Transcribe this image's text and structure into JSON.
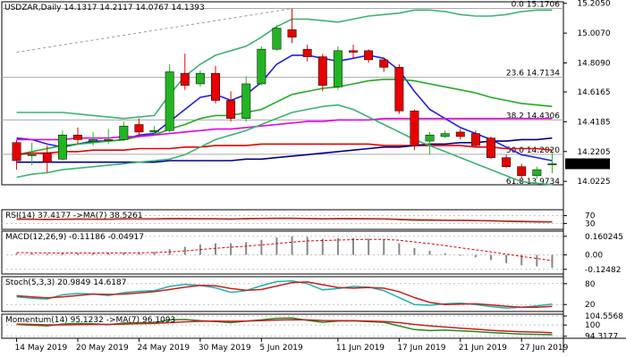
{
  "window": {
    "symbol_info": "USDZAR,Daily  14.1317 14.2117 14.0767 14.1393"
  },
  "chart_data": [
    {
      "type": "candlestick",
      "title": "USDZAR,Daily  14.1317 14.2117 14.0767 14.1393",
      "ylim": [
        14.0,
        15.215
      ],
      "price_ticks": [
        "15.2050",
        "15.0070",
        "14.8090",
        "14.6165",
        "14.4185",
        "14.2205",
        "14.0225"
      ],
      "price_tick_values": [
        15.205,
        15.007,
        14.809,
        14.6165,
        14.4185,
        14.2205,
        14.0225
      ],
      "current_price": {
        "label": "14.1393",
        "value": 14.1393
      },
      "date_labels": [
        "14 May 2019",
        "20 May 2019",
        "24 May 2019",
        "30 May 2019",
        "5 Jun 2019",
        "11 Jun 2019",
        "17 Jun 2019",
        "21 Jun 2019",
        "27 Jun 2019"
      ],
      "date_label_index": [
        0,
        4,
        8,
        12,
        16,
        21,
        25,
        29,
        33
      ],
      "fib_levels": [
        {
          "label": "0.0 15.1706",
          "value": 15.1706
        },
        {
          "label": "23.6 14.7134",
          "value": 14.7134
        },
        {
          "label": "38.2 14.4306",
          "value": 14.4306
        },
        {
          "label": "50.0 14.2020",
          "value": 14.202
        },
        {
          "label": "61.8 13.9734",
          "value": 13.9734
        }
      ],
      "candles": [
        {
          "o": 14.28,
          "h": 14.3,
          "l": 14.1,
          "c": 14.16
        },
        {
          "o": 14.2,
          "h": 14.28,
          "l": 14.13,
          "c": 14.2
        },
        {
          "o": 14.21,
          "h": 14.26,
          "l": 14.08,
          "c": 14.15
        },
        {
          "o": 14.17,
          "h": 14.36,
          "l": 14.16,
          "c": 14.33
        },
        {
          "o": 14.33,
          "h": 14.38,
          "l": 14.27,
          "c": 14.3
        },
        {
          "o": 14.29,
          "h": 14.35,
          "l": 14.26,
          "c": 14.3
        },
        {
          "o": 14.3,
          "h": 14.37,
          "l": 14.27,
          "c": 14.3
        },
        {
          "o": 14.3,
          "h": 14.42,
          "l": 14.29,
          "c": 14.39
        },
        {
          "o": 14.4,
          "h": 14.44,
          "l": 14.33,
          "c": 14.35
        },
        {
          "o": 14.35,
          "h": 14.39,
          "l": 14.33,
          "c": 14.36
        },
        {
          "o": 14.36,
          "h": 14.8,
          "l": 14.35,
          "c": 14.75
        },
        {
          "o": 14.74,
          "h": 14.87,
          "l": 14.63,
          "c": 14.66
        },
        {
          "o": 14.67,
          "h": 14.76,
          "l": 14.65,
          "c": 14.74
        },
        {
          "o": 14.74,
          "h": 14.79,
          "l": 14.54,
          "c": 14.56
        },
        {
          "o": 14.56,
          "h": 14.62,
          "l": 14.42,
          "c": 14.44
        },
        {
          "o": 14.44,
          "h": 14.72,
          "l": 14.42,
          "c": 14.67
        },
        {
          "o": 14.67,
          "h": 14.92,
          "l": 14.66,
          "c": 14.9
        },
        {
          "o": 14.9,
          "h": 15.06,
          "l": 14.89,
          "c": 15.04
        },
        {
          "o": 15.03,
          "h": 15.17,
          "l": 14.94,
          "c": 14.98
        },
        {
          "o": 14.9,
          "h": 14.93,
          "l": 14.82,
          "c": 14.85
        },
        {
          "o": 14.85,
          "h": 14.87,
          "l": 14.62,
          "c": 14.66
        },
        {
          "o": 14.65,
          "h": 14.92,
          "l": 14.63,
          "c": 14.89
        },
        {
          "o": 14.89,
          "h": 14.93,
          "l": 14.84,
          "c": 14.88
        },
        {
          "o": 14.89,
          "h": 14.9,
          "l": 14.81,
          "c": 14.83
        },
        {
          "o": 14.83,
          "h": 14.84,
          "l": 14.75,
          "c": 14.78
        },
        {
          "o": 14.78,
          "h": 14.8,
          "l": 14.47,
          "c": 14.49
        },
        {
          "o": 14.49,
          "h": 14.5,
          "l": 14.23,
          "c": 14.26
        },
        {
          "o": 14.29,
          "h": 14.35,
          "l": 14.2,
          "c": 14.33
        },
        {
          "o": 14.32,
          "h": 14.36,
          "l": 14.31,
          "c": 14.34
        },
        {
          "o": 14.35,
          "h": 14.37,
          "l": 14.3,
          "c": 14.32
        },
        {
          "o": 14.34,
          "h": 14.36,
          "l": 14.25,
          "c": 14.26
        },
        {
          "o": 14.31,
          "h": 14.32,
          "l": 14.17,
          "c": 14.18
        },
        {
          "o": 14.18,
          "h": 14.2,
          "l": 14.11,
          "c": 14.12
        },
        {
          "o": 14.12,
          "h": 14.14,
          "l": 14.04,
          "c": 14.06
        },
        {
          "o": 14.06,
          "h": 14.12,
          "l": 14.04,
          "c": 14.1
        },
        {
          "o": 14.1317,
          "h": 14.2117,
          "l": 14.0767,
          "c": 14.1393
        }
      ],
      "overlays": [
        {
          "color": "#1f1fe6",
          "values": [
            14.31,
            14.3,
            14.27,
            14.25,
            14.27,
            14.29,
            14.29,
            14.3,
            14.33,
            14.34,
            14.42,
            14.5,
            14.58,
            14.6,
            14.56,
            14.6,
            14.68,
            14.8,
            14.86,
            14.86,
            14.84,
            14.82,
            14.84,
            14.86,
            14.84,
            14.76,
            14.62,
            14.5,
            14.44,
            14.38,
            14.34,
            14.3,
            14.25,
            14.2,
            14.18,
            14.16
          ]
        },
        {
          "color": "#22aa22",
          "values": [
            14.2,
            14.22,
            14.24,
            14.26,
            14.27,
            14.28,
            14.29,
            14.3,
            14.32,
            14.33,
            14.37,
            14.4,
            14.44,
            14.46,
            14.46,
            14.48,
            14.5,
            14.55,
            14.6,
            14.62,
            14.64,
            14.65,
            14.67,
            14.69,
            14.7,
            14.7,
            14.69,
            14.67,
            14.65,
            14.63,
            14.61,
            14.58,
            14.56,
            14.54,
            14.53,
            14.52
          ]
        },
        {
          "color": "#e600e6",
          "values": [
            14.3,
            14.3,
            14.3,
            14.3,
            14.31,
            14.31,
            14.31,
            14.32,
            14.32,
            14.33,
            14.34,
            14.35,
            14.36,
            14.37,
            14.37,
            14.38,
            14.39,
            14.4,
            14.41,
            14.42,
            14.42,
            14.43,
            14.43,
            14.43,
            14.44,
            14.44,
            14.44,
            14.44,
            14.44,
            14.44,
            14.44,
            14.44,
            14.44,
            14.44,
            14.44,
            14.44
          ]
        },
        {
          "color": "#e60000",
          "values": [
            14.2,
            14.21,
            14.21,
            14.22,
            14.22,
            14.23,
            14.23,
            14.23,
            14.24,
            14.24,
            14.24,
            14.25,
            14.25,
            14.26,
            14.26,
            14.26,
            14.27,
            14.27,
            14.27,
            14.27,
            14.27,
            14.27,
            14.27,
            14.27,
            14.26,
            14.26,
            14.26,
            14.26,
            14.26,
            14.26,
            14.25,
            14.25,
            14.24,
            14.24,
            14.24,
            14.23
          ]
        },
        {
          "color": "#00008b",
          "values": [
            14.15,
            14.15,
            14.15,
            14.15,
            14.15,
            14.15,
            14.15,
            14.15,
            14.15,
            14.15,
            14.16,
            14.16,
            14.16,
            14.16,
            14.16,
            14.17,
            14.17,
            14.18,
            14.19,
            14.2,
            14.21,
            14.22,
            14.23,
            14.24,
            14.25,
            14.25,
            14.26,
            14.27,
            14.27,
            14.28,
            14.28,
            14.29,
            14.29,
            14.3,
            14.3,
            14.31
          ]
        },
        {
          "color": "#3cb371",
          "values": [
            14.05,
            14.07,
            14.08,
            14.1,
            14.11,
            14.12,
            14.13,
            14.14,
            14.15,
            14.16,
            14.17,
            14.2,
            14.25,
            14.3,
            14.33,
            14.36,
            14.4,
            14.44,
            14.48,
            14.5,
            14.52,
            14.53,
            14.5,
            14.45,
            14.4,
            14.35,
            14.3,
            14.26,
            14.22,
            14.18,
            14.14,
            14.1,
            14.06,
            14.02,
            14.01,
            14.0
          ]
        },
        {
          "color": "#3cb371",
          "values": [
            14.48,
            14.48,
            14.48,
            14.48,
            14.47,
            14.46,
            14.45,
            14.44,
            14.45,
            14.46,
            14.6,
            14.72,
            14.8,
            14.86,
            14.89,
            14.92,
            14.98,
            15.05,
            15.1,
            15.1,
            15.09,
            15.08,
            15.1,
            15.12,
            15.13,
            15.14,
            15.16,
            15.16,
            15.15,
            15.13,
            15.12,
            15.12,
            15.13,
            15.15,
            15.16,
            15.16
          ]
        }
      ],
      "trend_line": {
        "from": [
          0,
          14.88
        ],
        "to": [
          18,
          15.17
        ],
        "color": "#999999"
      }
    },
    {
      "type": "line",
      "title": "RSI(14) 37.4177 ->MA(7) 38.5261",
      "ylim": [
        0,
        100
      ],
      "ticks": [
        "70",
        "30"
      ],
      "tick_values": [
        70,
        30
      ],
      "series": [
        {
          "color": "#1e8c1e",
          "values": [
            53,
            52,
            50,
            52,
            53,
            52,
            52,
            54,
            53,
            53,
            55,
            55,
            54,
            54,
            52,
            55,
            56,
            57,
            57,
            55,
            53,
            55,
            55,
            54,
            53,
            50,
            47,
            46,
            47,
            46,
            45,
            43,
            41,
            39,
            38,
            37.4177
          ]
        },
        {
          "color": "#c81e1e",
          "values": [
            52,
            52,
            51,
            51,
            52,
            52,
            52,
            53,
            53,
            53,
            54,
            54,
            54,
            54,
            53,
            54,
            55,
            56,
            56,
            55,
            54,
            54,
            54,
            54,
            53,
            51,
            49,
            48,
            47,
            46,
            45,
            44,
            42,
            41,
            39,
            38.5261
          ]
        }
      ]
    },
    {
      "type": "bar",
      "title": "MACD(12,26,9) -0.11186 -0.04917",
      "ylim": [
        -0.165,
        0.205
      ],
      "ticks": [
        "0.160245",
        "0.00",
        "-0.12482"
      ],
      "tick_values": [
        0.160245,
        0.0,
        -0.12482
      ],
      "values": [
        0.014,
        0.012,
        0.01,
        0.013,
        0.015,
        0.016,
        0.017,
        0.02,
        0.023,
        0.025,
        0.05,
        0.07,
        0.09,
        0.1,
        0.1,
        0.11,
        0.13,
        0.15,
        0.16,
        0.155,
        0.14,
        0.145,
        0.145,
        0.14,
        0.13,
        0.1,
        0.06,
        0.035,
        0.015,
        0.0,
        -0.02,
        -0.045,
        -0.07,
        -0.09,
        -0.1,
        -0.11186
      ],
      "signal": {
        "color": "#e60000",
        "values": [
          0.02,
          0.018,
          0.017,
          0.016,
          0.016,
          0.016,
          0.016,
          0.017,
          0.018,
          0.02,
          0.026,
          0.035,
          0.046,
          0.057,
          0.066,
          0.075,
          0.086,
          0.098,
          0.11,
          0.12,
          0.124,
          0.128,
          0.132,
          0.134,
          0.133,
          0.126,
          0.112,
          0.097,
          0.08,
          0.062,
          0.044,
          0.026,
          0.006,
          -0.013,
          -0.031,
          -0.04917
        ]
      }
    },
    {
      "type": "line",
      "title": "Stoch(5,3,3) 20.9849 14.6187",
      "ylim": [
        0,
        100
      ],
      "ticks": [
        "80",
        "20"
      ],
      "tick_values": [
        80,
        20
      ],
      "series": [
        {
          "color": "#20b2aa",
          "values": [
            42,
            38,
            36,
            48,
            52,
            50,
            46,
            54,
            58,
            60,
            72,
            78,
            75,
            68,
            55,
            60,
            74,
            86,
            88,
            80,
            62,
            66,
            72,
            70,
            60,
            40,
            20,
            18,
            22,
            24,
            20,
            14,
            10,
            12,
            16,
            20.9849
          ]
        },
        {
          "color": "#c81e1e",
          "values": [
            45,
            42,
            39,
            42,
            46,
            50,
            49,
            50,
            53,
            57,
            63,
            70,
            75,
            74,
            66,
            61,
            63,
            73,
            83,
            85,
            77,
            69,
            67,
            69,
            67,
            57,
            40,
            26,
            20,
            21,
            22,
            19,
            15,
            12,
            12,
            14.6187
          ]
        }
      ]
    },
    {
      "type": "line",
      "title": "Momentum(14) 95.1232 ->MA(7) 96.1093",
      "ylim": [
        93.3,
        105.5
      ],
      "ticks": [
        "104.5568",
        "100",
        "94.3177"
      ],
      "tick_values": [
        104.5568,
        100.0,
        94.3177
      ],
      "series": [
        {
          "color": "#1e8c1e",
          "values": [
            100.3,
            99.9,
            99.6,
            100.5,
            100.8,
            100.6,
            100.2,
            101,
            101.2,
            101.2,
            102.6,
            102.8,
            102.2,
            101.8,
            101.2,
            102,
            102.6,
            103.4,
            103.6,
            102.4,
            101.4,
            102,
            102.1,
            101.7,
            101.4,
            99.6,
            97.7,
            97.2,
            97.4,
            97.1,
            96.7,
            96.2,
            95.8,
            95.4,
            95.3,
            95.1232
          ]
        },
        {
          "color": "#c81e1e",
          "values": [
            100.5,
            100.3,
            100.1,
            100.1,
            100.2,
            100.3,
            100.3,
            100.5,
            100.7,
            100.8,
            101.2,
            101.6,
            101.9,
            102,
            101.9,
            102,
            102.2,
            102.5,
            102.7,
            102.6,
            102.3,
            102.2,
            102.2,
            102,
            101.8,
            101.2,
            100.3,
            99.6,
            99,
            98.4,
            97.9,
            97.3,
            96.9,
            96.6,
            96.4,
            96.1093
          ]
        }
      ]
    }
  ],
  "colors": {
    "bull": "#22b422",
    "bear": "#e60000",
    "grid": "#c0c0c0",
    "fib": "#aaaaaa",
    "current_bg": "#000000",
    "current_fg": "#ffffff"
  }
}
